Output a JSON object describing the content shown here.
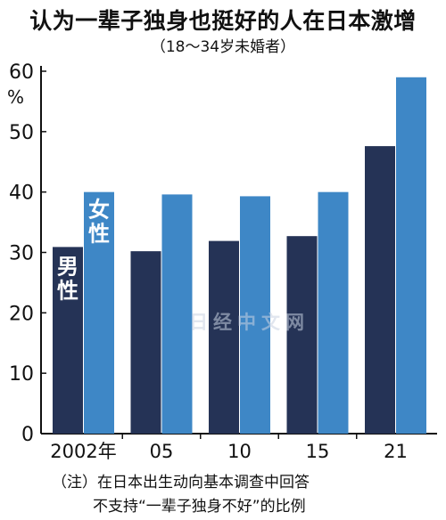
{
  "title": "认为一辈子独身也挺好的人在日本激增",
  "subtitle": "（18～34岁未婚者）",
  "unit": "%",
  "watermark": "日经中文网",
  "note": {
    "line1": "（注）在日本出生动向基本调查中回答",
    "line2": "不支持“一辈子独身不好”的比例"
  },
  "colors": {
    "male": "#253356",
    "female": "#3e87c6",
    "axis": "#111111"
  },
  "chart_data": {
    "type": "bar",
    "categories": [
      "2002年",
      "05",
      "10",
      "15",
      "21"
    ],
    "series": [
      {
        "name": "男性",
        "values": [
          30.9,
          30.2,
          31.9,
          32.7,
          47.6
        ]
      },
      {
        "name": "女性",
        "values": [
          40.0,
          39.6,
          39.3,
          40.0,
          59.0
        ]
      }
    ],
    "yticks": [
      0,
      10,
      20,
      30,
      40,
      50,
      60
    ],
    "ylim": [
      0,
      60
    ],
    "ylabel": "%",
    "grid": false,
    "legend": "inside-first-bars"
  }
}
